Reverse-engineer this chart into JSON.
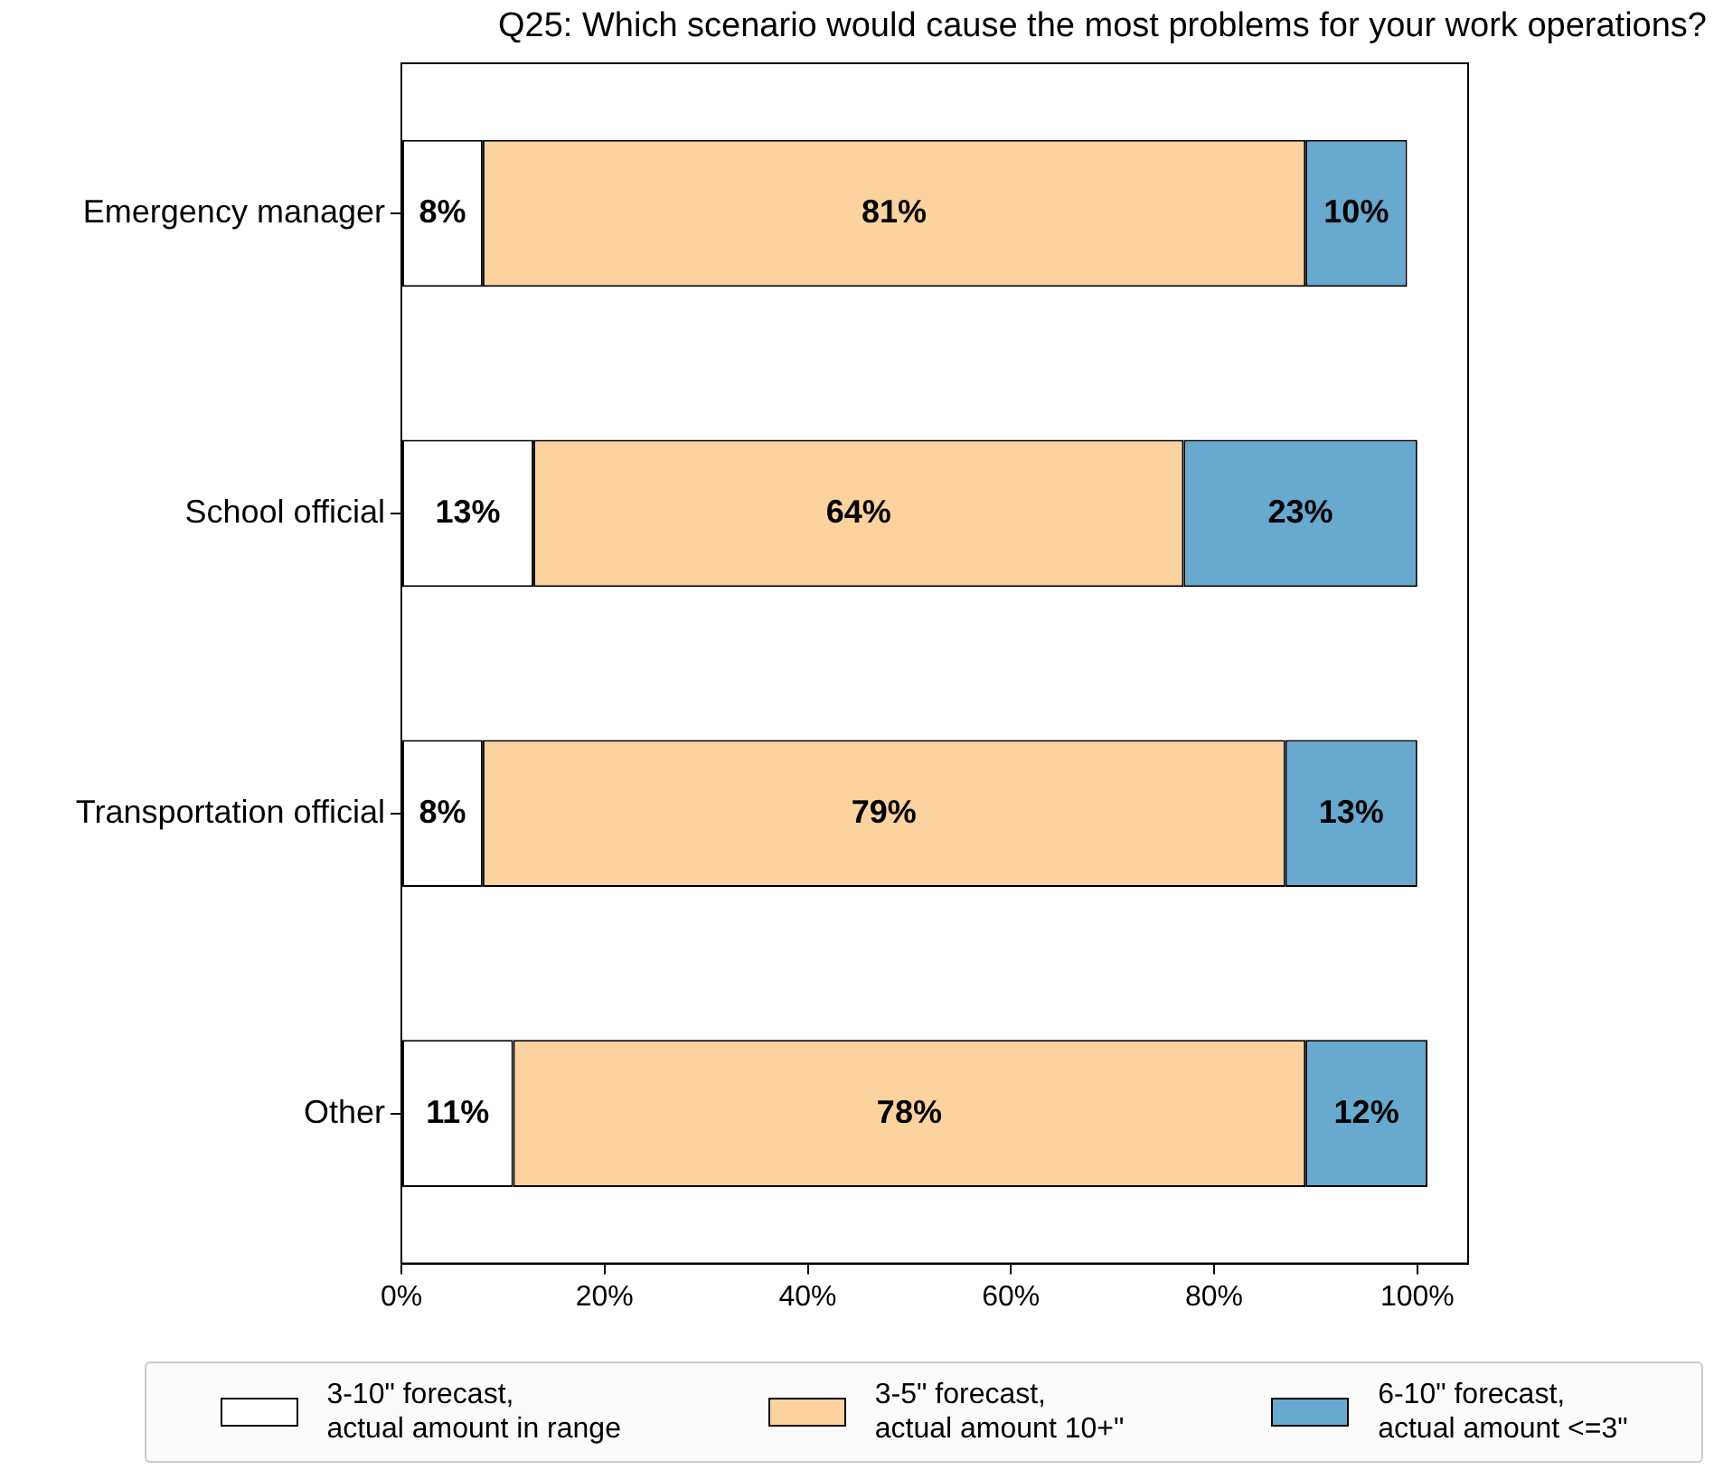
{
  "chart_data": {
    "type": "bar",
    "orientation": "horizontal",
    "stacked": true,
    "title": "Q25: Which scenario would cause the most problems for your work operations?",
    "categories": [
      "Emergency manager",
      "School official",
      "Transportation official",
      "Other"
    ],
    "series": [
      {
        "name": "3-10\" forecast,\nactual amount in range",
        "color": "#ffffff",
        "values": [
          8,
          13,
          8,
          11
        ],
        "value_labels": [
          "8%",
          "13%",
          "8%",
          "11%"
        ]
      },
      {
        "name": "3-5\" forecast,\nactual amount 10+\"",
        "color": "#fcd29f",
        "values": [
          81,
          64,
          79,
          78
        ],
        "value_labels": [
          "81%",
          "64%",
          "79%",
          "78%"
        ]
      },
      {
        "name": "6-10\" forecast,\nactual amount <=3\"",
        "color": "#67a9cf",
        "values": [
          10,
          23,
          13,
          12
        ],
        "value_labels": [
          "10%",
          "23%",
          "13%",
          "12%"
        ]
      }
    ],
    "xlim": [
      0,
      105
    ],
    "xticks": [
      {
        "value": 0,
        "label": "0%"
      },
      {
        "value": 20,
        "label": "20%"
      },
      {
        "value": 40,
        "label": "40%"
      },
      {
        "value": 60,
        "label": "60%"
      },
      {
        "value": 80,
        "label": "80%"
      },
      {
        "value": 100,
        "label": "100%"
      }
    ],
    "legend": "bottom"
  }
}
